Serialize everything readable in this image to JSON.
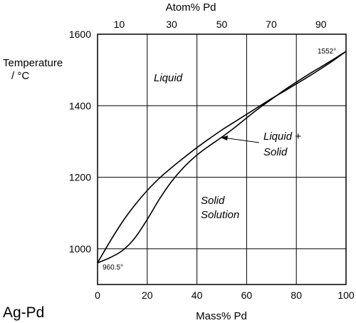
{
  "chart_data": {
    "type": "line",
    "title": "Ag-Pd",
    "xlabel": "Mass% Pd",
    "ylabel_line1": "Temperature",
    "ylabel_line2": "/ °C",
    "top_axis_label": "Atom% Pd",
    "xlim": [
      0,
      100
    ],
    "ylim": [
      900,
      1600
    ],
    "grid": true,
    "x_ticks": [
      "0",
      "20",
      "40",
      "60",
      "80",
      "100"
    ],
    "y_ticks": [
      "1000",
      "1200",
      "1400",
      "1600"
    ],
    "top_ticks": [
      "10",
      "30",
      "50",
      "70",
      "90"
    ],
    "top_tick_mass_positions": [
      8.7,
      29.8,
      50.0,
      69.9,
      89.9
    ],
    "series": [
      {
        "x": [
          0,
          5,
          10,
          15,
          20,
          25,
          30,
          35,
          40,
          45,
          50,
          55,
          60,
          65,
          70,
          75,
          80,
          85,
          90,
          95,
          100
        ],
        "y": [
          960.5,
          1020,
          1075,
          1122,
          1163,
          1198,
          1228,
          1256,
          1283,
          1308,
          1332,
          1354,
          1376,
          1398,
          1420,
          1440,
          1461,
          1482,
          1504,
          1527,
          1552
        ]
      },
      {
        "x": [
          0,
          5,
          10,
          15,
          20,
          25,
          30,
          35,
          40,
          45,
          50,
          55,
          60,
          65,
          70,
          75,
          80,
          85,
          90,
          95,
          100
        ],
        "y": [
          960.5,
          975,
          995,
          1030,
          1082,
          1140,
          1190,
          1230,
          1262,
          1288,
          1312,
          1338,
          1366,
          1393,
          1418,
          1443,
          1466,
          1488,
          1509,
          1530,
          1552
        ]
      }
    ],
    "annotations": {
      "liquid": "Liquid",
      "liquid_solid_1": "Liquid +",
      "liquid_solid_2": "Solid",
      "solid_1": "Solid",
      "solid_2": "Solution",
      "ag_melt": "960.5°",
      "pd_melt": "1552°"
    }
  }
}
